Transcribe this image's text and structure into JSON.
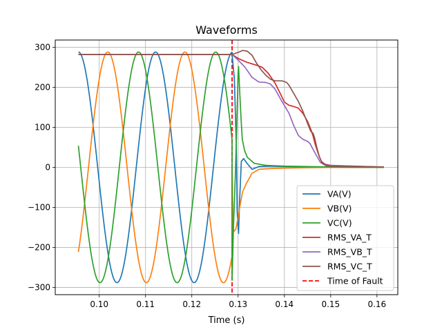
{
  "chart_data": {
    "type": "line",
    "title": "Waveforms",
    "xlabel": "Time (s)",
    "ylabel": "",
    "xlim": [
      0.0905,
      0.1645
    ],
    "ylim": [
      -318,
      318
    ],
    "xticks": [
      0.1,
      0.11,
      0.12,
      0.13,
      0.14,
      0.15,
      0.16
    ],
    "xtick_labels": [
      "0.10",
      "0.11",
      "0.12",
      "0.13",
      "0.14",
      "0.15",
      "0.16"
    ],
    "yticks": [
      -300,
      -200,
      -100,
      0,
      100,
      200,
      300
    ],
    "ytick_labels": [
      "−300",
      "−200",
      "−100",
      "0",
      "100",
      "200",
      "300"
    ],
    "grid": true,
    "legend_position": "lower-right",
    "fault_time": 0.1287,
    "series": [
      {
        "name": "VA(V)",
        "color": "#1f77b4",
        "style": "solid",
        "kind": "sine",
        "amplitude": 288,
        "phase_offset": 0.0955,
        "post": [
          [
            0.1287,
            282
          ],
          [
            0.1292,
            220
          ],
          [
            0.1296,
            60
          ],
          [
            0.1298,
            -110
          ],
          [
            0.13,
            -150
          ],
          [
            0.1301,
            -165
          ],
          [
            0.1303,
            -90
          ],
          [
            0.1307,
            15
          ],
          [
            0.1312,
            22
          ],
          [
            0.1318,
            12
          ],
          [
            0.133,
            -5
          ],
          [
            0.1345,
            2
          ],
          [
            0.137,
            3
          ],
          [
            0.14,
            2
          ],
          [
            0.145,
            1
          ],
          [
            0.15,
            0
          ],
          [
            0.155,
            0
          ],
          [
            0.1615,
            0
          ]
        ]
      },
      {
        "name": "VB(V)",
        "color": "#ff7f0e",
        "style": "solid",
        "kind": "sine",
        "amplitude": 288,
        "phase_offset": 0.10185,
        "post": [
          [
            0.1287,
            0
          ],
          [
            0.1289,
            -145
          ],
          [
            0.1291,
            -160
          ],
          [
            0.1295,
            -155
          ],
          [
            0.13,
            -125
          ],
          [
            0.1305,
            -90
          ],
          [
            0.131,
            -60
          ],
          [
            0.1318,
            -40
          ],
          [
            0.133,
            -15
          ],
          [
            0.1345,
            -5
          ],
          [
            0.137,
            -3
          ],
          [
            0.14,
            -2
          ],
          [
            0.145,
            -1
          ],
          [
            0.15,
            0
          ],
          [
            0.155,
            0
          ],
          [
            0.1615,
            0
          ]
        ]
      },
      {
        "name": "VC(V)",
        "color": "#2ca02c",
        "style": "solid",
        "kind": "sine",
        "amplitude": 288,
        "phase_offset": 0.1085,
        "post": [
          [
            0.1287,
            -282
          ],
          [
            0.129,
            -150
          ],
          [
            0.1294,
            -20
          ],
          [
            0.1297,
            100
          ],
          [
            0.13,
            235
          ],
          [
            0.1301,
            252
          ],
          [
            0.1303,
            200
          ],
          [
            0.1306,
            130
          ],
          [
            0.1309,
            70
          ],
          [
            0.1314,
            42
          ],
          [
            0.132,
            25
          ],
          [
            0.1335,
            10
          ],
          [
            0.136,
            5
          ],
          [
            0.14,
            3
          ],
          [
            0.145,
            2
          ],
          [
            0.15,
            1
          ],
          [
            0.155,
            0
          ],
          [
            0.1615,
            0
          ]
        ]
      },
      {
        "name": "RMS_VA_T",
        "color": "#d62728",
        "style": "solid",
        "kind": "points",
        "points": [
          [
            0.0955,
            282
          ],
          [
            0.1287,
            282
          ],
          [
            0.13,
            272
          ],
          [
            0.132,
            262
          ],
          [
            0.134,
            255
          ],
          [
            0.1352,
            250
          ],
          [
            0.1365,
            235
          ],
          [
            0.138,
            210
          ],
          [
            0.1393,
            180
          ],
          [
            0.14,
            163
          ],
          [
            0.141,
            155
          ],
          [
            0.142,
            152
          ],
          [
            0.143,
            148
          ],
          [
            0.144,
            135
          ],
          [
            0.145,
            115
          ],
          [
            0.1458,
            92
          ],
          [
            0.1462,
            78
          ],
          [
            0.1466,
            60
          ],
          [
            0.147,
            45
          ],
          [
            0.1475,
            28
          ],
          [
            0.148,
            15
          ],
          [
            0.1487,
            8
          ],
          [
            0.15,
            5
          ],
          [
            0.152,
            4
          ],
          [
            0.155,
            3
          ],
          [
            0.158,
            2
          ],
          [
            0.1615,
            1
          ]
        ]
      },
      {
        "name": "RMS_VB_T",
        "color": "#9467bd",
        "style": "solid",
        "kind": "points",
        "points": [
          [
            0.0955,
            282
          ],
          [
            0.1287,
            282
          ],
          [
            0.13,
            268
          ],
          [
            0.1315,
            250
          ],
          [
            0.133,
            225
          ],
          [
            0.1345,
            213
          ],
          [
            0.136,
            212
          ],
          [
            0.137,
            208
          ],
          [
            0.138,
            195
          ],
          [
            0.1393,
            168
          ],
          [
            0.141,
            135
          ],
          [
            0.142,
            105
          ],
          [
            0.143,
            80
          ],
          [
            0.144,
            70
          ],
          [
            0.145,
            65
          ],
          [
            0.1455,
            60
          ],
          [
            0.1462,
            45
          ],
          [
            0.147,
            28
          ],
          [
            0.1478,
            12
          ],
          [
            0.1487,
            6
          ],
          [
            0.15,
            5
          ],
          [
            0.153,
            4
          ],
          [
            0.156,
            2
          ],
          [
            0.1615,
            1
          ]
        ]
      },
      {
        "name": "RMS_VC_T",
        "color": "#8c564b",
        "style": "solid",
        "kind": "points",
        "points": [
          [
            0.0955,
            282
          ],
          [
            0.1287,
            282
          ],
          [
            0.13,
            287
          ],
          [
            0.131,
            292
          ],
          [
            0.132,
            290
          ],
          [
            0.133,
            280
          ],
          [
            0.134,
            260
          ],
          [
            0.135,
            243
          ],
          [
            0.136,
            230
          ],
          [
            0.137,
            220
          ],
          [
            0.138,
            216
          ],
          [
            0.1395,
            216
          ],
          [
            0.1405,
            212
          ],
          [
            0.141,
            205
          ],
          [
            0.142,
            185
          ],
          [
            0.143,
            165
          ],
          [
            0.144,
            140
          ],
          [
            0.145,
            110
          ],
          [
            0.1457,
            90
          ],
          [
            0.1462,
            85
          ],
          [
            0.1465,
            75
          ],
          [
            0.147,
            50
          ],
          [
            0.1476,
            25
          ],
          [
            0.1482,
            10
          ],
          [
            0.149,
            4
          ],
          [
            0.15,
            3
          ],
          [
            0.155,
            2
          ],
          [
            0.1615,
            1
          ]
        ]
      },
      {
        "name": "Time of Fault",
        "color": "#ff0000",
        "style": "dashed",
        "kind": "vline",
        "x": 0.1287
      }
    ]
  }
}
